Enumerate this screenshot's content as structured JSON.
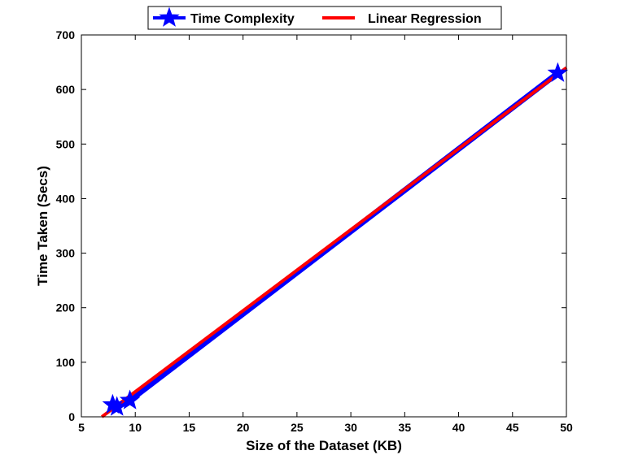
{
  "chart_data": {
    "type": "line",
    "xlabel": "Size of the Dataset (KB)",
    "ylabel": "Time Taken (Secs)",
    "xlim": [
      5,
      50
    ],
    "ylim": [
      0,
      700
    ],
    "xticks": [
      5,
      10,
      15,
      20,
      25,
      30,
      35,
      40,
      45,
      50
    ],
    "yticks": [
      0,
      100,
      200,
      300,
      400,
      500,
      600,
      700
    ],
    "grid": false,
    "legend_position": "top-center",
    "series": [
      {
        "name": "Time Complexity",
        "color": "#0000ff",
        "marker": "star",
        "x": [
          7.9,
          8.3,
          9.5,
          49.2
        ],
        "y": [
          22,
          18,
          30,
          630
        ]
      },
      {
        "name": "Linear Regression",
        "color": "#ff0000",
        "marker": "none",
        "x": [
          6.9,
          50
        ],
        "y": [
          0,
          640
        ]
      }
    ]
  }
}
